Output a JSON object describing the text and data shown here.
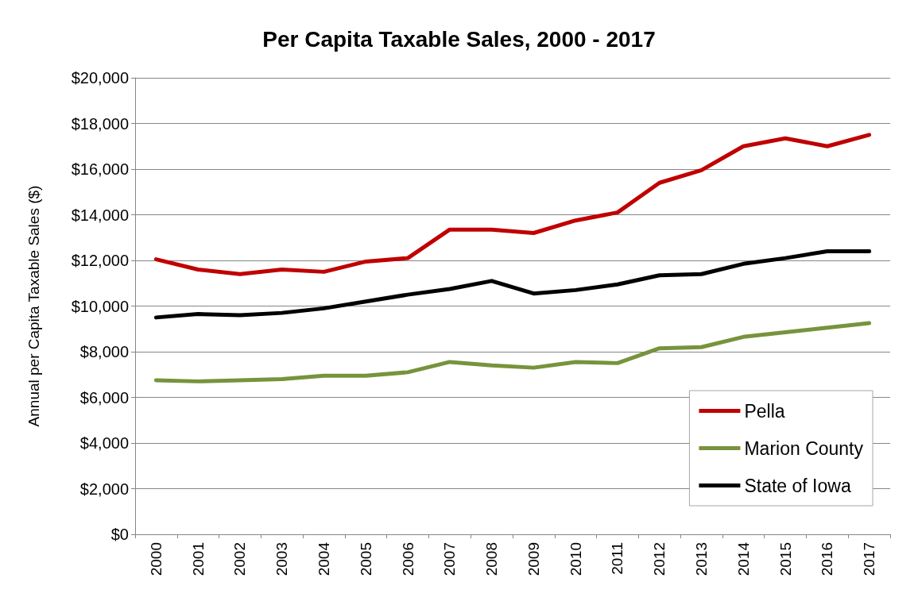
{
  "chart_data": {
    "type": "line",
    "title": "Per Capita Taxable Sales, 2000 - 2017",
    "ylabel": "Annual per Capita Taxable Sales ($)",
    "categories": [
      "2000",
      "2001",
      "2002",
      "2003",
      "2004",
      "2005",
      "2006",
      "2007",
      "2008",
      "2009",
      "2010",
      "2011",
      "2012",
      "2013",
      "2014",
      "2015",
      "2016",
      "2017"
    ],
    "series": [
      {
        "name": "Pella",
        "color": "#c00000",
        "values": [
          12050,
          11600,
          11400,
          11600,
          11500,
          11950,
          12100,
          13350,
          13350,
          13200,
          13750,
          14100,
          15400,
          15950,
          17000,
          17350,
          17000,
          17500
        ]
      },
      {
        "name": "Marion County",
        "color": "#77933c",
        "values": [
          6750,
          6700,
          6750,
          6800,
          6950,
          6950,
          7100,
          7550,
          7400,
          7300,
          7550,
          7500,
          8150,
          8200,
          8650,
          8850,
          9050,
          9250
        ]
      },
      {
        "name": "State of Iowa",
        "color": "#000000",
        "values": [
          9500,
          9650,
          9600,
          9700,
          9900,
          10200,
          10500,
          10750,
          11100,
          10550,
          10700,
          10950,
          11350,
          11400,
          11850,
          12100,
          12400,
          12400
        ]
      }
    ],
    "ylim": [
      0,
      20000
    ],
    "yticks": [
      {
        "value": 0,
        "label": "$0"
      },
      {
        "value": 2000,
        "label": "$2,000"
      },
      {
        "value": 4000,
        "label": "$4,000"
      },
      {
        "value": 6000,
        "label": "$6,000"
      },
      {
        "value": 8000,
        "label": "$8,000"
      },
      {
        "value": 10000,
        "label": "$10,000"
      },
      {
        "value": 12000,
        "label": "$12,000"
      },
      {
        "value": 14000,
        "label": "$14,000"
      },
      {
        "value": 16000,
        "label": "$16,000"
      },
      {
        "value": 18000,
        "label": "$18,000"
      },
      {
        "value": 20000,
        "label": "$20,000"
      }
    ],
    "grid": "y",
    "legend": "bottom right",
    "marker": "none",
    "line_style": "solid"
  }
}
